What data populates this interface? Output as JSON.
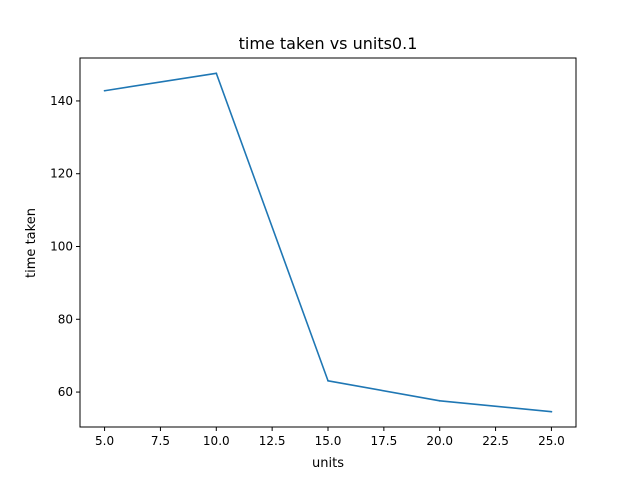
{
  "chart_data": {
    "type": "line",
    "title": "time taken vs units0.1",
    "xlabel": "units",
    "ylabel": "time taken",
    "xlim": [
      3.9,
      26.1
    ],
    "ylim": [
      50.4,
      151.8
    ],
    "x_ticks": [
      5.0,
      7.5,
      10.0,
      12.5,
      15.0,
      17.5,
      20.0,
      22.5,
      25.0
    ],
    "x_tick_labels": [
      "5.0",
      "7.5",
      "10.0",
      "12.5",
      "15.0",
      "17.5",
      "20.0",
      "22.5",
      "25.0"
    ],
    "y_ticks": [
      60,
      80,
      100,
      120,
      140
    ],
    "y_tick_labels": [
      "60",
      "80",
      "100",
      "120",
      "140"
    ],
    "grid": false,
    "series": [
      {
        "color": "#1f77b4",
        "x": [
          5,
          10,
          15,
          20,
          25
        ],
        "y": [
          142.8,
          147.6,
          63.1,
          57.6,
          54.6
        ]
      }
    ]
  }
}
